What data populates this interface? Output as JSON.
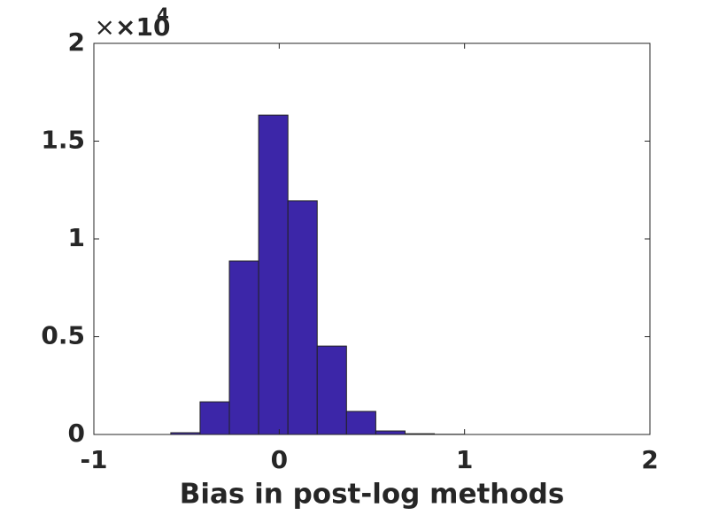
{
  "chart_data": {
    "type": "histogram",
    "x_label": "Bias in post-log methods",
    "y_multiplier": {
      "base": "×10",
      "exponent": "4"
    },
    "bins": [
      -0.585,
      -0.427,
      -0.269,
      -0.111,
      0.047,
      0.205,
      0.363,
      0.521,
      0.679,
      0.837,
      0.995
    ],
    "values": [
      0.009,
      0.167,
      0.887,
      1.633,
      1.195,
      0.452,
      0.118,
      0.018,
      0.004,
      0.001
    ],
    "color": "#3c26a8",
    "edge_color": "#222222",
    "xlim": [
      -1,
      2
    ],
    "xticks": [
      -1,
      0,
      1,
      2
    ],
    "ylim": [
      0,
      2
    ],
    "yticks": [
      0,
      0.5,
      1,
      1.5,
      2
    ],
    "grid": false
  }
}
